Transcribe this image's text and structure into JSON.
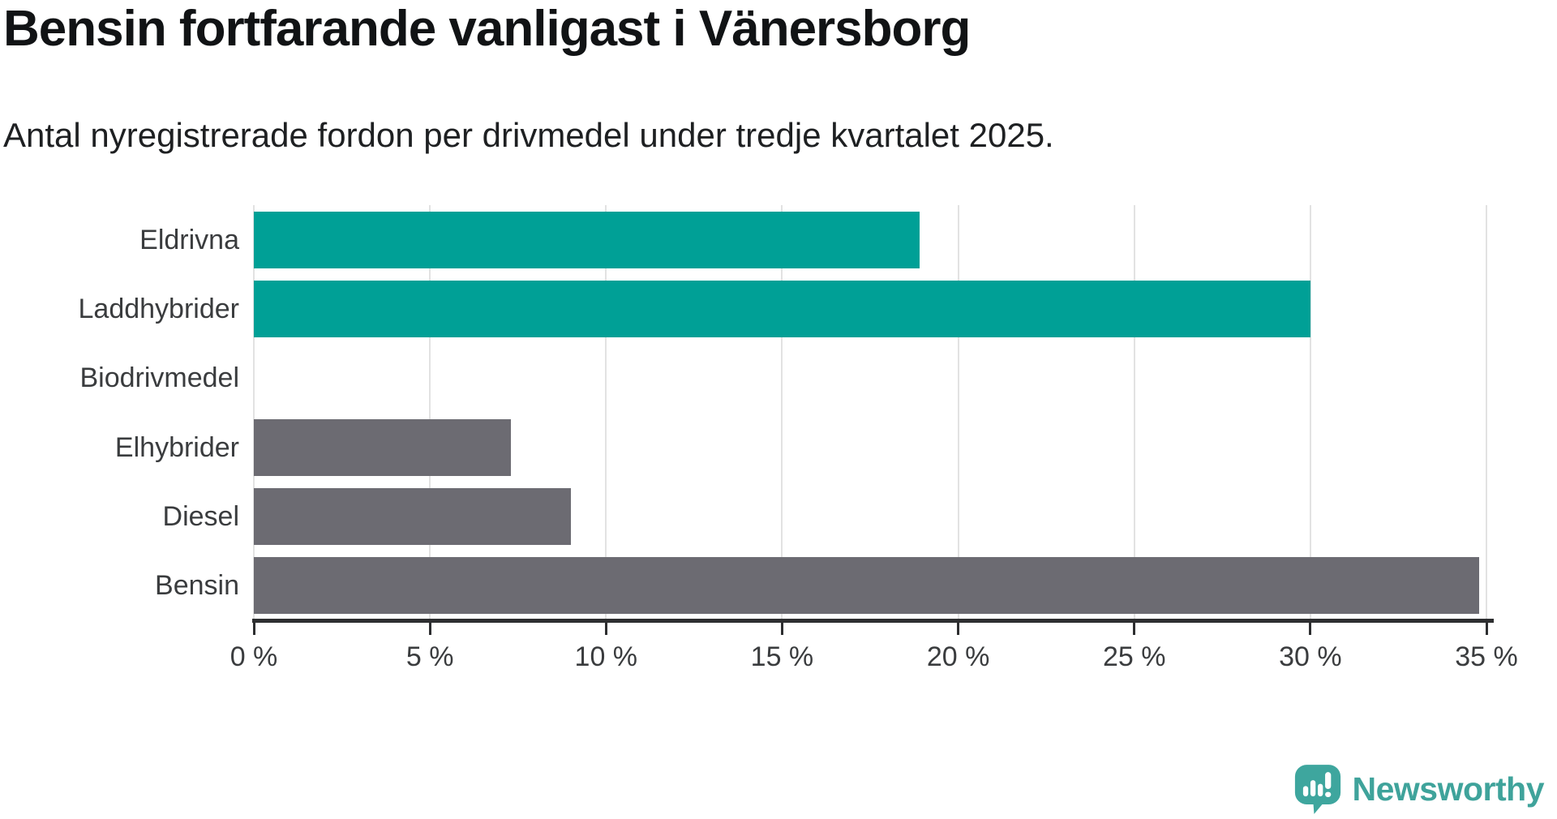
{
  "header": {
    "title": "Bensin fortfarande vanligast i Vänersborg",
    "subtitle": "Antal nyregistrerade fordon per drivmedel under tredje kvartalet 2025."
  },
  "chart_data": {
    "type": "bar",
    "orientation": "horizontal",
    "title": "Bensin fortfarande vanligast i Vänersborg",
    "subtitle": "Antal nyregistrerade fordon per drivmedel under tredje kvartalet 2025.",
    "categories": [
      "Eldrivna",
      "Laddhybrider",
      "Biodrivmedel",
      "Elhybrider",
      "Diesel",
      "Bensin"
    ],
    "values": [
      18.9,
      30,
      0,
      7.3,
      9,
      34.8
    ],
    "unit": "%",
    "bar_colors": [
      "#00a096",
      "#00a096",
      "#6c6b72",
      "#6c6b72",
      "#6c6b72",
      "#6c6b72"
    ],
    "xlabel": "",
    "ylabel": "",
    "x_axis": {
      "min": 0,
      "max": 35,
      "tick_values": [
        0,
        5,
        10,
        15,
        20,
        25,
        30,
        35
      ],
      "tick_labels": [
        "0 %",
        "5 %",
        "10 %",
        "15 %",
        "20 %",
        "25 %",
        "30 %",
        "35 %"
      ]
    },
    "grid": true,
    "legend": false
  },
  "branding": {
    "logo_text": "Newsworthy",
    "logo_icon": "newsworthy-bubble-bar-chart-icon",
    "logo_color": "#3fa39b",
    "icon_color": "#3ea69e"
  },
  "colors": {
    "teal_bar": "#00a096",
    "gray_bar": "#6c6b72",
    "gridline": "#e2e2e2",
    "axis": "#2d2e30",
    "title_text": "#111315",
    "label_text": "#3a3c3e"
  }
}
